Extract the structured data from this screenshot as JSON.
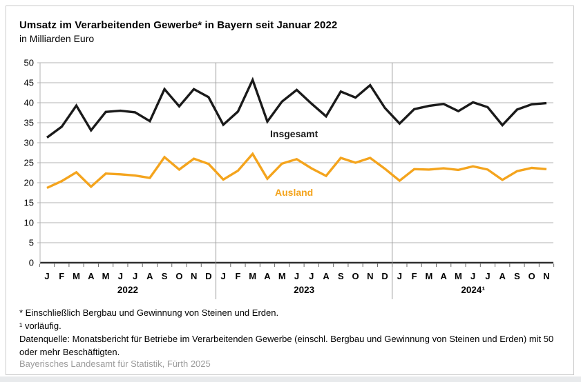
{
  "header": {
    "title": "Umsatz im Verarbeitenden Gewerbe* in Bayern seit Januar 2022",
    "subtitle": "in Milliarden Euro"
  },
  "chart_data": {
    "type": "line",
    "title": "Umsatz im Verarbeitenden Gewerbe* in Bayern seit Januar 2022",
    "subtitle": "in Milliarden Euro",
    "ylabel": "Milliarden Euro",
    "ylim": [
      0,
      50
    ],
    "ytick_step": 5,
    "grid": true,
    "legend_position": "inline-labels",
    "x_months": [
      "J",
      "F",
      "M",
      "A",
      "M",
      "J",
      "J",
      "A",
      "S",
      "O",
      "N",
      "D",
      "J",
      "F",
      "M",
      "A",
      "M",
      "J",
      "J",
      "A",
      "S",
      "O",
      "N",
      "D",
      "J",
      "F",
      "M",
      "A",
      "M",
      "J",
      "J",
      "A",
      "S",
      "O",
      "N"
    ],
    "year_groups": [
      {
        "label": "2022",
        "months": 12
      },
      {
        "label": "2023",
        "months": 12
      },
      {
        "label": "2024¹",
        "months": 11
      }
    ],
    "series": [
      {
        "name": "Insgesamt",
        "color": "#1a1a1a",
        "values": [
          31.3,
          34.0,
          39.3,
          33.1,
          37.7,
          38.0,
          37.6,
          35.4,
          43.4,
          39.1,
          43.4,
          41.4,
          34.5,
          37.8,
          45.7,
          35.3,
          40.3,
          43.2,
          39.8,
          36.6,
          42.8,
          41.3,
          44.4,
          38.7,
          34.8,
          38.4,
          39.2,
          39.7,
          37.9,
          40.1,
          38.9,
          34.4,
          38.3,
          39.6,
          39.9
        ]
      },
      {
        "name": "Ausland",
        "color": "#f4a41d",
        "values": [
          18.7,
          20.4,
          22.6,
          19.0,
          22.3,
          22.1,
          21.8,
          21.2,
          26.4,
          23.3,
          26.0,
          24.7,
          20.8,
          23.0,
          27.2,
          21.0,
          24.8,
          25.9,
          23.6,
          21.7,
          26.2,
          25.0,
          26.2,
          23.5,
          20.5,
          23.4,
          23.3,
          23.6,
          23.2,
          24.1,
          23.3,
          20.7,
          22.9,
          23.7,
          23.4
        ]
      }
    ]
  },
  "colors": {
    "gridline": "#b3b3b3",
    "axis": "#2e2e2e",
    "separator": "#9b9b9b",
    "insgesamt_line": "#1a1a1a",
    "ausland_line": "#f4a41d"
  },
  "footnotes": {
    "line1": "* Einschließlich Bergbau und Gewinnung von Steinen und Erden.",
    "line2": "¹ vorläufig.",
    "line3": "Datenquelle: Monatsbericht für Betriebe im Verarbeitenden Gewerbe (einschl. Bergbau und Gewinnung von Steinen und Erden) mit 50 oder mehr Beschäftigten."
  },
  "footer": {
    "credit": "Bayerisches Landesamt für Statistik, Fürth 2025"
  }
}
